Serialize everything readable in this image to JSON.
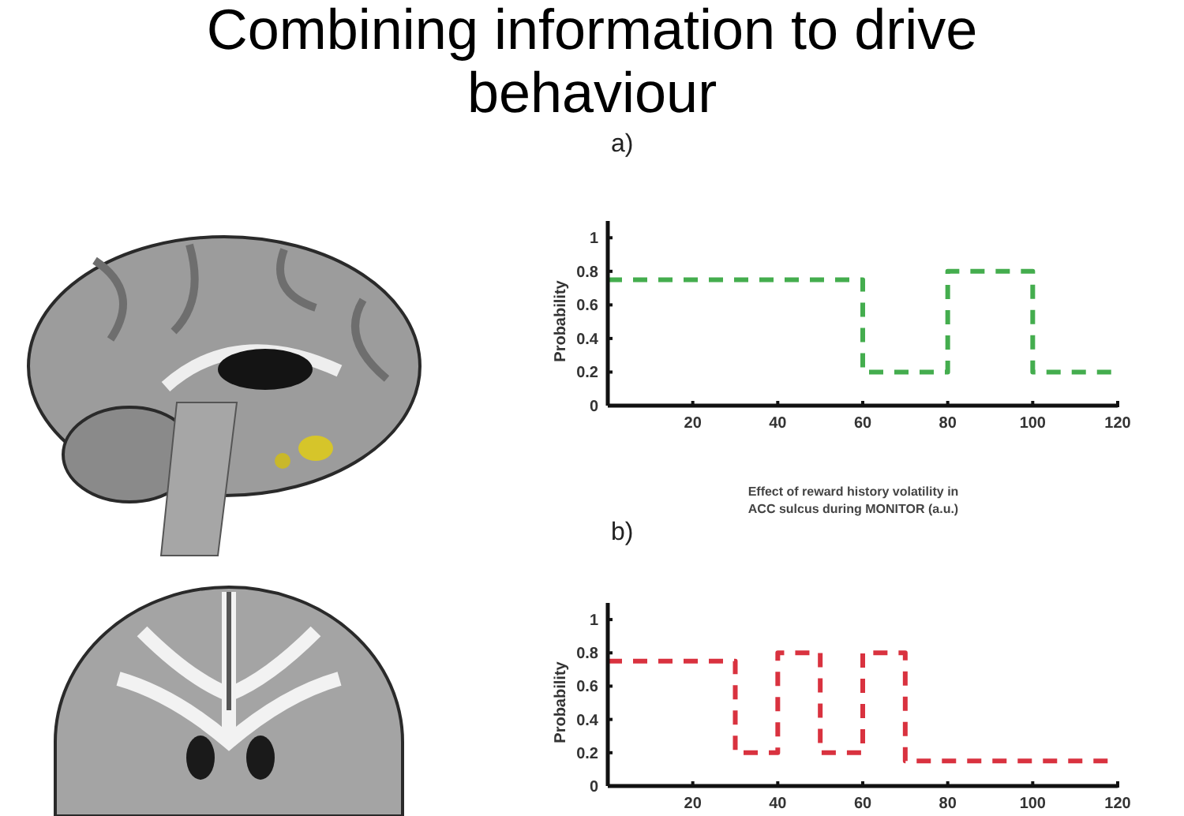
{
  "chart_data": [
    {
      "type": "step",
      "title": "a)",
      "xlabel": "Effect of reward history volatility in ACC sulcus during MONITOR (a.u.)",
      "ylabel": "Probability",
      "annotations": [
        "Combining information to drive behaviour"
      ],
      "x": [
        0,
        60,
        80,
        100,
        120
      ],
      "series": [
        {
          "color": "#44ad4e",
          "values": [
            0.75,
            0.2,
            0.8,
            0.2,
            0.2
          ]
        }
      ],
      "xlim": [
        0,
        120
      ],
      "ylim": [
        0,
        1.1
      ],
      "xticks": [
        20,
        40,
        60,
        80,
        100,
        120
      ],
      "yticks": [
        0,
        0.2,
        0.4,
        0.6,
        0.8,
        1
      ],
      "line_style": "dashed"
    },
    {
      "type": "step",
      "title": "b)",
      "ylabel": "Probability",
      "x": [
        0,
        30,
        40,
        50,
        60,
        70,
        120
      ],
      "series": [
        {
          "color": "#d9323f",
          "values": [
            0.75,
            0.2,
            0.8,
            0.2,
            0.8,
            0.15,
            0.15
          ]
        }
      ],
      "xlim": [
        0,
        120
      ],
      "ylim": [
        0,
        1.1
      ],
      "xticks": [
        20,
        40,
        60,
        80,
        100,
        120
      ],
      "yticks": [
        0,
        0.2,
        0.4,
        0.6,
        0.8,
        1
      ],
      "line_style": "dashed"
    }
  ]
}
